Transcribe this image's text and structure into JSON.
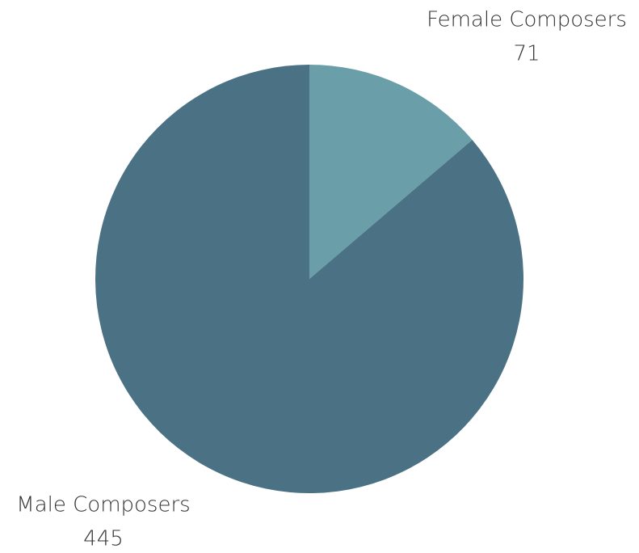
{
  "chart_data": {
    "type": "pie",
    "categories": [
      "Female Composers",
      "Male Composers"
    ],
    "values": [
      71,
      445
    ],
    "colors": [
      "#6a9ea8",
      "#4b7284"
    ]
  }
}
